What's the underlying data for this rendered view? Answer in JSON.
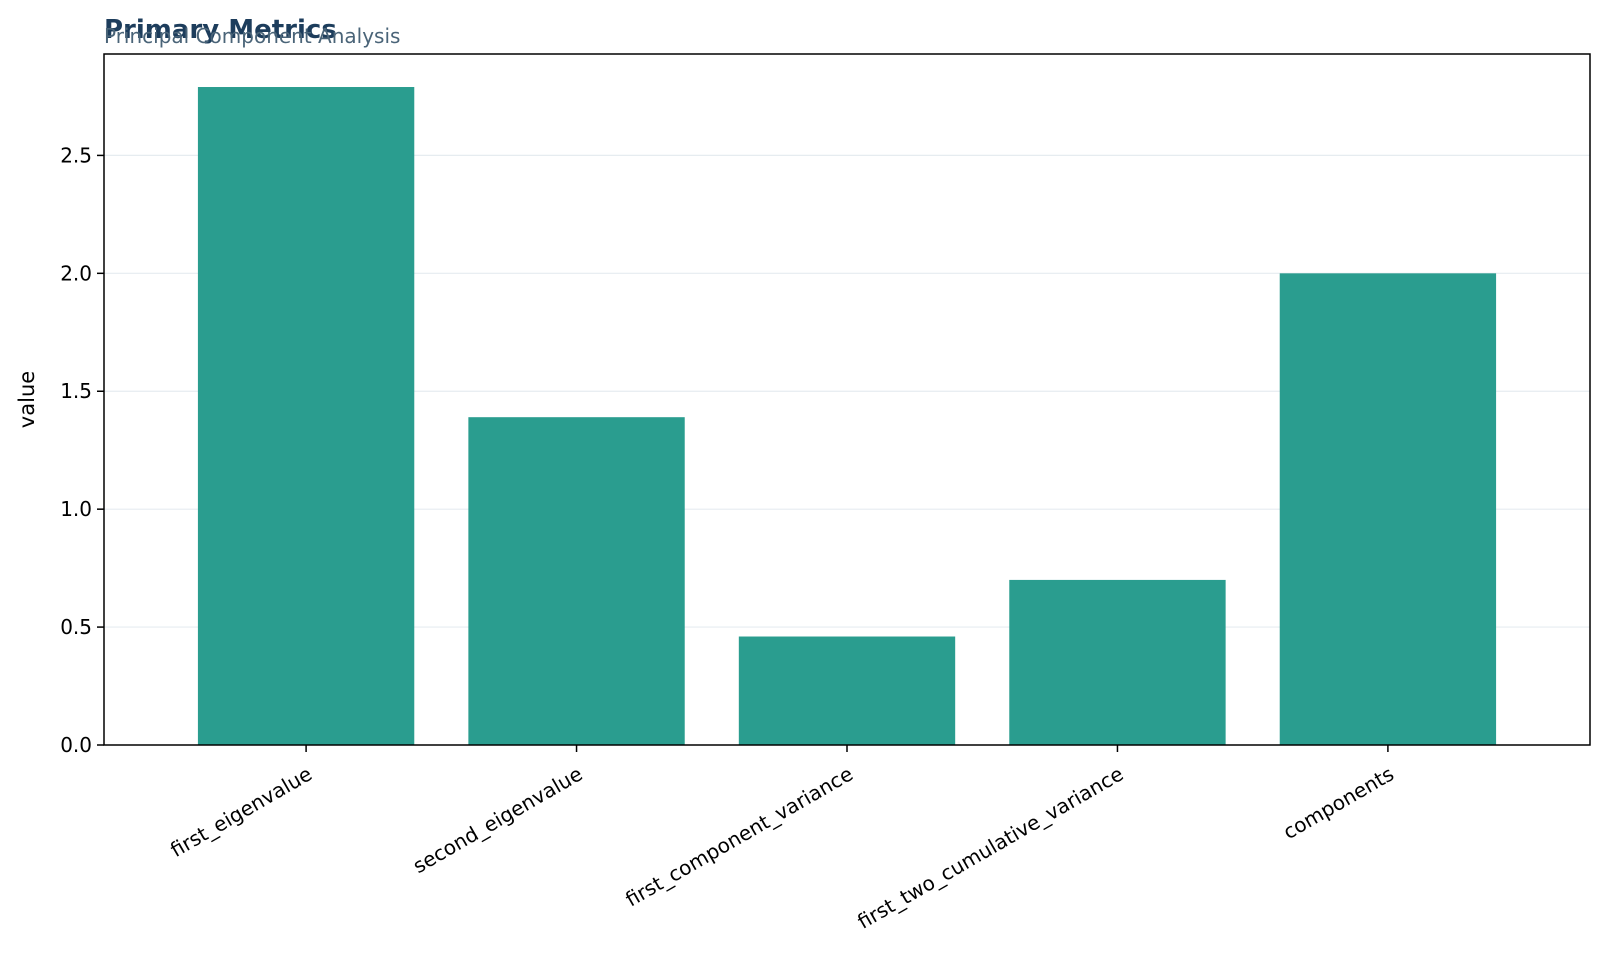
{
  "chart_data": {
    "type": "bar",
    "title": "Primary Metrics",
    "subtitle": "Principal Component Analysis",
    "xlabel": "",
    "ylabel": "value",
    "categories": [
      "first_eigenvalue",
      "second_eigenvalue",
      "first_component_variance",
      "first_two_cumulative_variance",
      "components"
    ],
    "values": [
      2.79,
      1.39,
      0.46,
      0.7,
      2.0
    ],
    "ylim": [
      0,
      2.93
    ],
    "yticks": [
      0.0,
      0.5,
      1.0,
      1.5,
      2.0,
      2.5
    ],
    "ytick_labels": [
      "0.0",
      "0.5",
      "1.0",
      "1.5",
      "2.0",
      "2.5"
    ],
    "grid": "horizontal",
    "legend": "none",
    "colors": {
      "bar": "#2a9d8f",
      "title": "#1d3d5c",
      "subtitle": "#4a6478",
      "grid": "#e6ecf0",
      "axis": "#000000"
    }
  }
}
